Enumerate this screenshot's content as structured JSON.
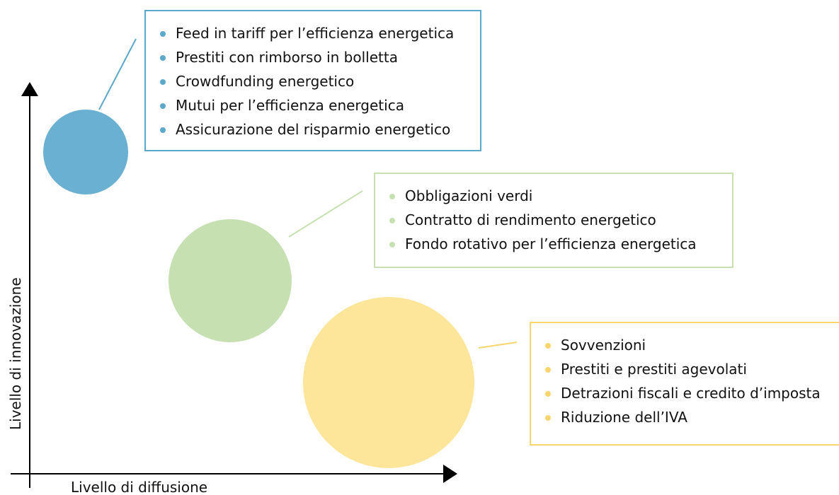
{
  "y_axis_label": "Livello di innovazione",
  "x_axis_label": "Livello di diffusione",
  "groups": [
    {
      "items": [
        "Feed in tariff per l’efficienza energetica",
        "Prestiti con rimborso in bolletta",
        "Crowdfunding energetico",
        "Mutui per l’efficienza energetica",
        "Assicurazione del risparmio energetico"
      ]
    },
    {
      "items": [
        "Obbligazioni verdi",
        "Contratto di rendimento energetico",
        "Fondo rotativo per l’efficienza energetica"
      ]
    },
    {
      "items": [
        "Sovvenzioni",
        "Prestiti e prestiti agevolati",
        "Detrazioni fiscali e credito d’imposta",
        "Riduzione dell’IVA"
      ]
    }
  ]
}
